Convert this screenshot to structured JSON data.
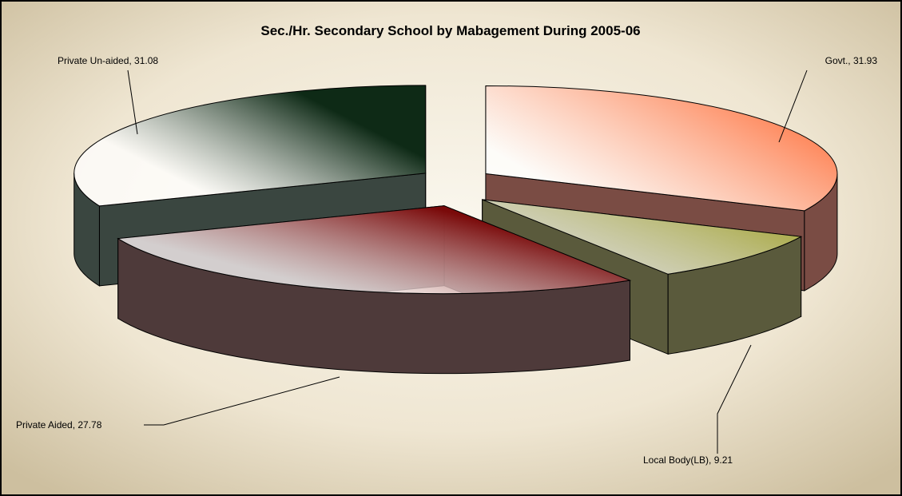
{
  "chart_data": {
    "type": "pie3d",
    "title": "Sec./Hr. Secondary School by Mabagement During 2005-06",
    "values": [
      31.93,
      9.21,
      27.78,
      31.08
    ],
    "value_labels": [
      "Govt., 31.93",
      "Local Body(LB), 9.21",
      "Private Aided, 27.78",
      "Private Un-aided, 31.08"
    ],
    "colors": [
      "#ff5a1e",
      "#9a9a1a",
      "#7a0a0a",
      "#0e2a16"
    ],
    "side_colors": [
      "#7a4c44",
      "#5a5a3c",
      "#4e3a3a",
      "#3a4640"
    ]
  }
}
